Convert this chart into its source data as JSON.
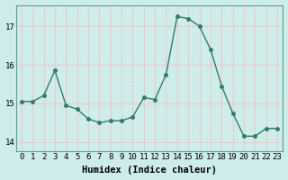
{
  "x": [
    0,
    1,
    2,
    3,
    4,
    5,
    6,
    7,
    8,
    9,
    10,
    11,
    12,
    13,
    14,
    15,
    16,
    17,
    18,
    19,
    20,
    21,
    22,
    23
  ],
  "y": [
    15.05,
    15.05,
    15.2,
    15.85,
    14.95,
    14.85,
    14.6,
    14.5,
    14.55,
    14.55,
    14.65,
    15.15,
    15.1,
    15.75,
    17.25,
    17.2,
    17.0,
    16.4,
    15.45,
    14.75,
    14.15,
    14.15,
    14.35,
    14.35
  ],
  "line_color": "#2e7d6e",
  "marker": "o",
  "markersize": 2.5,
  "linewidth": 1.0,
  "bg_color": "#ceecea",
  "grid_color_major": "#f5c0c0",
  "grid_color_minor": "#daf0ee",
  "xlabel": "Humidex (Indice chaleur)",
  "yticks": [
    14,
    15,
    16,
    17
  ],
  "xticks": [
    0,
    1,
    2,
    3,
    4,
    5,
    6,
    7,
    8,
    9,
    10,
    11,
    12,
    13,
    14,
    15,
    16,
    17,
    18,
    19,
    20,
    21,
    22,
    23
  ],
  "xlim": [
    -0.5,
    23.5
  ],
  "ylim": [
    13.75,
    17.55
  ],
  "xlabel_fontsize": 7.5,
  "tick_fontsize": 6.5,
  "spine_color": "#5a9e96"
}
